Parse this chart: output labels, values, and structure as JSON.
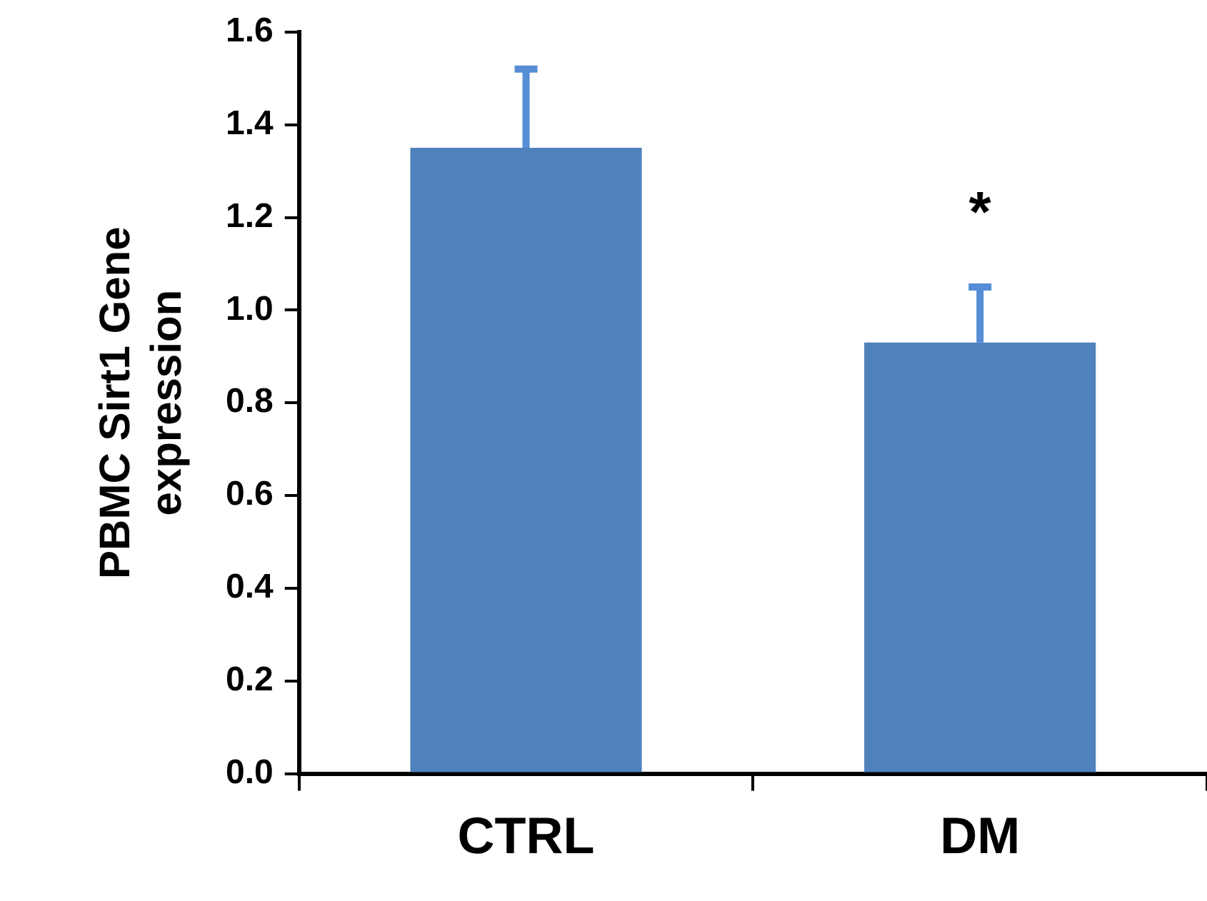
{
  "chart_data": {
    "type": "bar",
    "ylabel": "PBMC Sirt1 Gene expression",
    "categories": [
      "CTRL",
      "DM"
    ],
    "values": [
      1.35,
      0.93
    ],
    "color": "#4f81bd",
    "errors": [
      [
        1.35,
        1.52
      ],
      [
        0.93,
        1.05
      ]
    ],
    "ylim": [
      0,
      1.6
    ],
    "yticks": [
      {
        "value": 0,
        "label": "0.0"
      },
      {
        "value": 0.2,
        "label": "0.2"
      },
      {
        "value": 0.4,
        "label": "0.4"
      },
      {
        "value": 0.6,
        "label": "0.6"
      },
      {
        "value": 0.8,
        "label": "0.8"
      },
      {
        "value": 1.0,
        "label": "1.0"
      },
      {
        "value": 1.2,
        "label": "1.2"
      },
      {
        "value": 1.4,
        "label": "1.4"
      },
      {
        "value": 1.6,
        "label": "1.6"
      }
    ],
    "grid": false,
    "legend": false,
    "annotations": [
      "*"
    ]
  }
}
